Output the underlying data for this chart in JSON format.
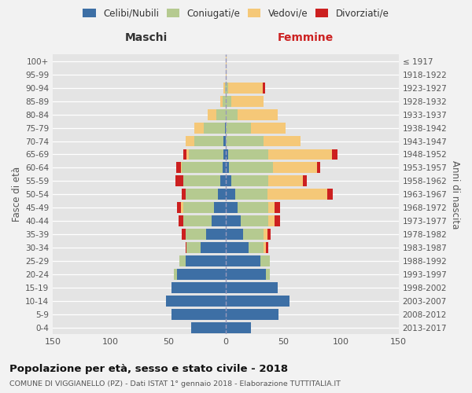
{
  "age_groups_bottom_to_top": [
    "0-4",
    "5-9",
    "10-14",
    "15-19",
    "20-24",
    "25-29",
    "30-34",
    "35-39",
    "40-44",
    "45-49",
    "50-54",
    "55-59",
    "60-64",
    "65-69",
    "70-74",
    "75-79",
    "80-84",
    "85-89",
    "90-94",
    "95-99",
    "100+"
  ],
  "birth_years_bottom_to_top": [
    "2013-2017",
    "2008-2012",
    "2003-2007",
    "1998-2002",
    "1993-1997",
    "1988-1992",
    "1983-1987",
    "1978-1982",
    "1973-1977",
    "1968-1972",
    "1963-1967",
    "1958-1962",
    "1953-1957",
    "1948-1952",
    "1943-1947",
    "1938-1942",
    "1933-1937",
    "1928-1932",
    "1923-1927",
    "1918-1922",
    "≤ 1917"
  ],
  "maschi_celibi": [
    30,
    47,
    52,
    47,
    42,
    35,
    22,
    17,
    12,
    10,
    7,
    5,
    3,
    2,
    2,
    1,
    0,
    0,
    0,
    0,
    0
  ],
  "maschi_coniugati": [
    0,
    0,
    0,
    0,
    3,
    5,
    12,
    18,
    25,
    27,
    28,
    32,
    35,
    30,
    25,
    18,
    8,
    3,
    1,
    0,
    0
  ],
  "maschi_vedovi": [
    0,
    0,
    0,
    0,
    0,
    0,
    0,
    0,
    0,
    2,
    0,
    0,
    1,
    2,
    8,
    8,
    8,
    2,
    1,
    0,
    0
  ],
  "maschi_divorziati": [
    0,
    0,
    0,
    0,
    0,
    0,
    1,
    3,
    4,
    3,
    3,
    7,
    4,
    3,
    0,
    0,
    0,
    0,
    0,
    0,
    0
  ],
  "femmine_nubili": [
    22,
    46,
    55,
    45,
    35,
    30,
    20,
    15,
    13,
    10,
    8,
    5,
    3,
    2,
    0,
    0,
    0,
    0,
    0,
    0,
    0
  ],
  "femmine_coniugate": [
    0,
    0,
    0,
    0,
    3,
    8,
    13,
    18,
    24,
    27,
    28,
    32,
    38,
    35,
    33,
    22,
    10,
    5,
    2,
    0,
    0
  ],
  "femmine_vedove": [
    0,
    0,
    0,
    0,
    0,
    0,
    2,
    3,
    5,
    5,
    52,
    30,
    38,
    55,
    32,
    30,
    35,
    28,
    30,
    1,
    1
  ],
  "femmine_divorziate": [
    0,
    0,
    0,
    0,
    0,
    0,
    2,
    3,
    5,
    5,
    5,
    3,
    3,
    5,
    0,
    0,
    0,
    0,
    2,
    0,
    0
  ],
  "color_celibi": "#3d6fa5",
  "color_coniugati": "#b5ca90",
  "color_vedovi": "#f5c878",
  "color_divorziati": "#cc2020",
  "bg_color": "#f2f2f2",
  "bar_bg": "#e4e4e4",
  "grid_color": "#ffffff",
  "xlim": 150,
  "title": "Popolazione per età, sesso e stato civile - 2018",
  "subtitle": "COMUNE DI VIGGIANELLO (PZ) - Dati ISTAT 1° gennaio 2018 - Elaborazione TUTTITALIA.IT",
  "legend_labels": [
    "Celibi/Nubili",
    "Coniugati/e",
    "Vedovi/e",
    "Divorziati/e"
  ],
  "ylabel_left": "Fasce di età",
  "ylabel_right": "Anni di nascita",
  "label_maschi": "Maschi",
  "label_femmine": "Femmine"
}
